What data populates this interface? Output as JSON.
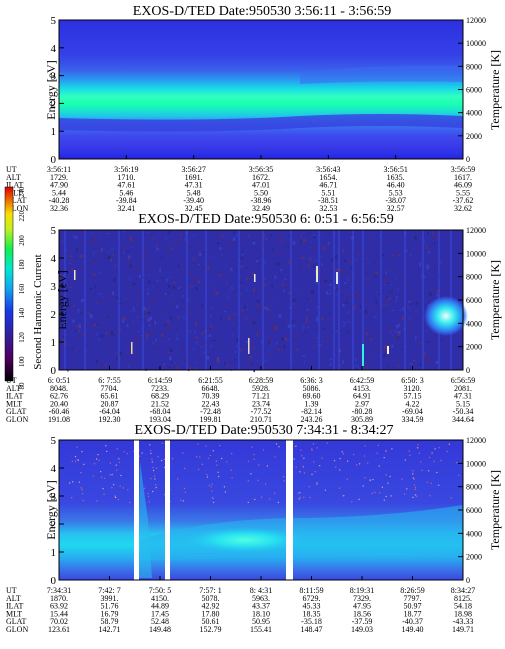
{
  "chart_data": [
    {
      "type": "heatmap",
      "title": "EXOS-D/TED   Date:950530  3:56:11 - 3:56:59",
      "ylabel": "Energy [eV]",
      "y2label": "Temperature [K]",
      "ylim": [
        0,
        5
      ],
      "y2lim": [
        0,
        12000
      ],
      "yticks": [
        "0",
        "1",
        "2",
        "3",
        "4",
        "5"
      ],
      "y2ticks": [
        "0",
        "2000",
        "4000",
        "6000",
        "8000",
        "10000",
        "12000"
      ],
      "band_center_ev": 2.3,
      "orbit_table": {
        "row_labels": [
          "UT",
          "ALT",
          "ILAT",
          "MLT",
          "GLAT",
          "GLON"
        ],
        "columns": [
          [
            "3:56:11",
            "1729.",
            "47.90",
            "5.44",
            "-40.28",
            "32.36"
          ],
          [
            "3:56:19",
            "1710.",
            "47.61",
            "5.46",
            "-39.84",
            "32.41"
          ],
          [
            "3:56:27",
            "1691.",
            "47.31",
            "5.48",
            "-39.40",
            "32.45"
          ],
          [
            "3:56:35",
            "1672.",
            "47.01",
            "5.50",
            "-38.96",
            "32.49"
          ],
          [
            "3:56:43",
            "1654.",
            "46.71",
            "5.51",
            "-38.51",
            "32.53"
          ],
          [
            "3:56:51",
            "1635.",
            "46.40",
            "5.53",
            "-38.07",
            "32.57"
          ],
          [
            "3:56:59",
            "1617.",
            "46.09",
            "5.55",
            "-37.62",
            "32.62"
          ]
        ]
      }
    },
    {
      "type": "heatmap",
      "title": "EXOS-D/TED   Date:950530  6: 0:51 - 6:56:59",
      "ylabel": "Energy [eV]",
      "y2label": "Temperature [K]",
      "ylim": [
        0,
        5
      ],
      "y2lim": [
        0,
        12000
      ],
      "yticks": [
        "0",
        "1",
        "2",
        "3",
        "4",
        "5"
      ],
      "y2ticks": [
        "0",
        "2000",
        "4000",
        "6000",
        "8000",
        "10000",
        "12000"
      ],
      "colorbar": {
        "label": "Second Harmonic Current",
        "ticks": [
          "80",
          "100",
          "120",
          "140",
          "160",
          "180",
          "200",
          "220",
          "240"
        ]
      },
      "orbit_table": {
        "row_labels": [
          "UT",
          "ALT",
          "ILAT",
          "MLT",
          "GLAT",
          "GLON"
        ],
        "columns": [
          [
            "6: 0:51",
            "8048.",
            "62.76",
            "20.40",
            "-60.46",
            "191.08"
          ],
          [
            "6: 7:55",
            "7704.",
            "65.61",
            "20.87",
            "-64.04",
            "192.30"
          ],
          [
            "6:14:59",
            "7233.",
            "68.29",
            "21.52",
            "-68.04",
            "193.04"
          ],
          [
            "6:21:55",
            "6648.",
            "70.39",
            "22.43",
            "-72.48",
            "199.81"
          ],
          [
            "6:28:59",
            "5928.",
            "71.21",
            "23.74",
            "-77.52",
            "210.71"
          ],
          [
            "6:36: 3",
            "5086.",
            "69.60",
            "1.39",
            "-82.14",
            "243.26"
          ],
          [
            "6:42:59",
            "4153.",
            "64.91",
            "2.97",
            "-80.28",
            "305.89"
          ],
          [
            "6:50: 3",
            "3120.",
            "57.15",
            "4.22",
            "-69.04",
            "334.59"
          ],
          [
            "6:56:59",
            "2081.",
            "47.31",
            "5.15",
            "-50.34",
            "344.64"
          ]
        ]
      }
    },
    {
      "type": "heatmap",
      "title": "EXOS-D/TED   Date:950530  7:34:31 - 8:34:27",
      "ylabel": "Energy [eV]",
      "y2label": "Temperature [K]",
      "ylim": [
        0,
        5
      ],
      "y2lim": [
        0,
        12000
      ],
      "yticks": [
        "0",
        "1",
        "2",
        "3",
        "4",
        "5"
      ],
      "y2ticks": [
        "0",
        "2000",
        "4000",
        "6000",
        "8000",
        "10000",
        "12000"
      ],
      "orbit_table": {
        "row_labels": [
          "UT",
          "ALT",
          "ILAT",
          "MLT",
          "GLAT",
          "GLON"
        ],
        "columns": [
          [
            "7:34:31",
            "1870.",
            "63.92",
            "15.44",
            "70.02",
            "123.61"
          ],
          [
            "7:42: 7",
            "3991.",
            "51.76",
            "16.79",
            "58.79",
            "142.71"
          ],
          [
            "7:50: 5",
            "4150.",
            "44.89",
            "17.45",
            "52.48",
            "149.48"
          ],
          [
            "7:57: 1",
            "5078.",
            "42.92",
            "17.80",
            "50.61",
            "152.79"
          ],
          [
            "8: 4:31",
            "5963.",
            "43.37",
            "18.10",
            "50.95",
            "155.41"
          ],
          [
            "8:11:59",
            "6729.",
            "45.33",
            "18.35",
            "-35.18",
            "148.47"
          ],
          [
            "8:19:31",
            "7329.",
            "47.95",
            "18.56",
            "-37.59",
            "149.03"
          ],
          [
            "8:26:59",
            "7797.",
            "50.97",
            "18.77",
            "-40.37",
            "149.40"
          ],
          [
            "8:34:27",
            "8125.",
            "54.18",
            "18.98",
            "-43.33",
            "149.71"
          ]
        ]
      }
    }
  ]
}
